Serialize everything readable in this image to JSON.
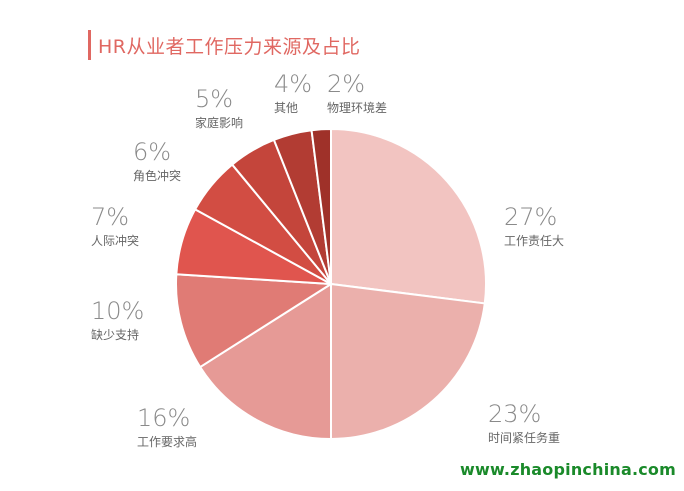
{
  "chart_data": {
    "type": "pie",
    "title": "HR从业者工作压力来源及占比",
    "slices": [
      {
        "label": "工作责任大",
        "value": 27,
        "display": "27%",
        "color": "#f2c4c1"
      },
      {
        "label": "时间紧任务重",
        "value": 23,
        "display": "23%",
        "color": "#ebb0ac"
      },
      {
        "label": "工作要求高",
        "value": 16,
        "display": "16%",
        "color": "#e69a96"
      },
      {
        "label": "缺少支持",
        "value": 10,
        "display": "10%",
        "color": "#e07b75"
      },
      {
        "label": "人际冲突",
        "value": 7,
        "display": "7%",
        "color": "#e0554e"
      },
      {
        "label": "角色冲突",
        "value": 6,
        "display": "6%",
        "color": "#d24d43"
      },
      {
        "label": "家庭影响",
        "value": 5,
        "display": "5%",
        "color": "#c4453b"
      },
      {
        "label": "其他",
        "value": 4,
        "display": "4%",
        "color": "#b23c33"
      },
      {
        "label": "物理环境差",
        "value": 2,
        "display": "2%",
        "color": "#9f3129"
      }
    ]
  },
  "watermark": "www.zhaopinchina.com"
}
